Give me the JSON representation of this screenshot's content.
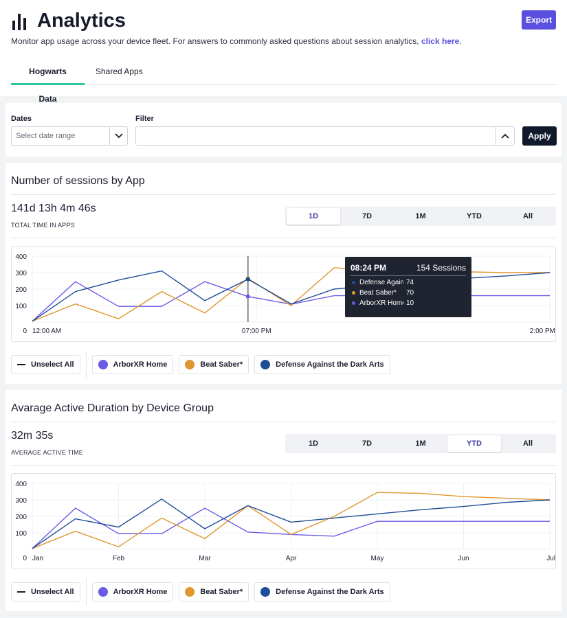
{
  "header": {
    "title": "Analytics",
    "subtitle": "Monitor app usage across your device fleet. For answers to commonly asked questions about session analytics, ",
    "subtitle_link": "click here",
    "subtitle_end": ".",
    "export_label": "Export",
    "tabs": [
      "Hogwarts Data",
      "Shared Apps"
    ]
  },
  "filters": {
    "dates_label": "Dates",
    "dates_placeholder": "Select date range",
    "filter_label": "Filter",
    "filter_value": "",
    "apply_label": "Apply"
  },
  "colors": {
    "accent": "#5b4fe0",
    "tab_underline": "#2ec4a6",
    "arborxr": "#6a5ce6",
    "beat_saber": "#e0962e",
    "defense": "#1e4c96"
  },
  "sessions_card": {
    "title": "Number of sessions by App",
    "big_value": "141d 13h 4m 46s",
    "caption": "TOTAL TIME IN APPS",
    "ranges": [
      "1D",
      "7D",
      "1M",
      "YTD",
      "All"
    ],
    "active_range": "1D",
    "legend": {
      "unselect": "Unselect All",
      "items": [
        "ArborXR Home",
        "Beat Saber*",
        "Defense Against the Dark Arts"
      ]
    },
    "tooltip": {
      "time": "08:24 PM",
      "sessions": "154 Sessions",
      "rows": [
        {
          "name": "Defense Against the Dark Arts",
          "value": "74"
        },
        {
          "name": "Beat Saber*",
          "value": "70"
        },
        {
          "name": "ArborXR Home",
          "value": "10"
        }
      ]
    }
  },
  "duration_card": {
    "title": "Avarage Active Duration by Device Group",
    "big_value": "32m 35s",
    "caption": "AVERAGE ACTIVE TIME",
    "ranges": [
      "1D",
      "7D",
      "1M",
      "YTD",
      "All"
    ],
    "active_range": "YTD",
    "legend": {
      "unselect": "Unselect All",
      "items": [
        "ArborXR Home",
        "Beat Saber*",
        "Defense Against the Dark Arts"
      ]
    }
  },
  "chart_data": [
    {
      "type": "line",
      "ylim": [
        0,
        400
      ],
      "yticks": [
        "0",
        "100",
        "200",
        "300",
        "400"
      ],
      "xticks": [
        "12:00 AM",
        "07:00 PM",
        "2:00 PM"
      ],
      "xtick_pos": [
        0,
        5.2,
        12
      ],
      "x": [
        0,
        1,
        2,
        3,
        4,
        5,
        6,
        7,
        8,
        9,
        10,
        11,
        12
      ],
      "series": [
        {
          "name": "ArborXR Home",
          "color": "#6a5ce6",
          "values": [
            5,
            245,
            95,
            95,
            245,
            155,
            108,
            160,
            160,
            160,
            160,
            160,
            160
          ]
        },
        {
          "name": "Beat Saber*",
          "color": "#e0962e",
          "values": [
            5,
            110,
            20,
            185,
            55,
            265,
            100,
            330,
            310,
            305,
            305,
            300,
            300
          ]
        },
        {
          "name": "Defense Against the Dark Arts",
          "color": "#1e4c96",
          "values": [
            5,
            185,
            255,
            310,
            130,
            260,
            110,
            200,
            225,
            250,
            265,
            280,
            300
          ]
        }
      ]
    },
    {
      "type": "line",
      "ylim": [
        0,
        400
      ],
      "yticks": [
        "0",
        "100",
        "200",
        "300",
        "400"
      ],
      "xticks": [
        "Jan",
        "Feb",
        "Mar",
        "Apr",
        "May",
        "Jun",
        "Jul"
      ],
      "xtick_pos": [
        0,
        2,
        4,
        6,
        8,
        10,
        12
      ],
      "x": [
        0,
        1,
        2,
        3,
        4,
        5,
        6,
        7,
        8,
        9,
        10,
        11,
        12
      ],
      "series": [
        {
          "name": "ArborXR Home",
          "color": "#6a5ce6",
          "values": [
            5,
            250,
            95,
            95,
            250,
            105,
            90,
            80,
            170,
            170,
            170,
            170,
            170
          ]
        },
        {
          "name": "Beat Saber*",
          "color": "#e0962e",
          "values": [
            5,
            110,
            15,
            190,
            65,
            265,
            90,
            200,
            345,
            340,
            320,
            310,
            300
          ]
        },
        {
          "name": "Defense Against the Dark Arts",
          "color": "#1e4c96",
          "values": [
            5,
            185,
            135,
            305,
            125,
            265,
            165,
            190,
            215,
            240,
            260,
            285,
            300
          ]
        }
      ]
    }
  ]
}
